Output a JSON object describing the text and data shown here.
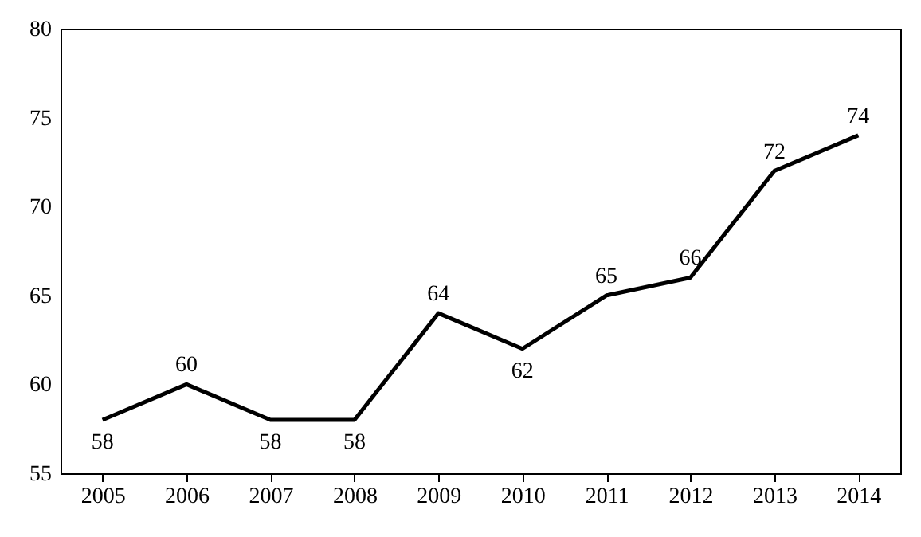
{
  "chart_data": {
    "type": "line",
    "categories": [
      "2005",
      "2006",
      "2007",
      "2008",
      "2009",
      "2010",
      "2011",
      "2012",
      "2013",
      "2014"
    ],
    "series": [
      {
        "color": "#000000",
        "values": [
          58,
          60,
          58,
          58,
          64,
          62,
          65,
          66,
          72,
          74
        ]
      }
    ],
    "ylim": [
      55,
      80
    ],
    "yticks": [
      55,
      60,
      65,
      70,
      75,
      80
    ],
    "data_labels": true,
    "grid": false,
    "marker": "none",
    "line_style": "solid"
  }
}
